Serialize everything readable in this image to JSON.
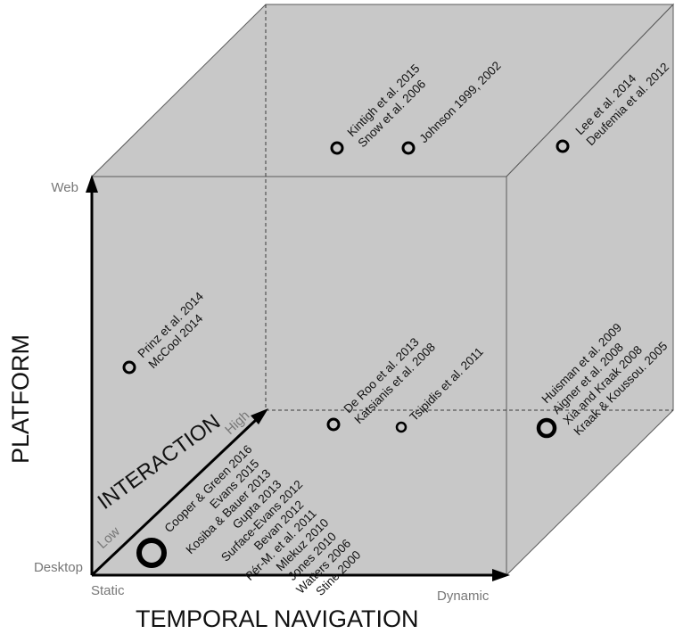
{
  "axes": {
    "platform": {
      "title": "PLATFORM",
      "low": "Desktop",
      "high": "Web"
    },
    "temporal": {
      "title": "TEMPORAL NAVIGATION",
      "low": "Static",
      "high": "Dynamic"
    },
    "interaction": {
      "title": "INTERACTION",
      "low": "Low",
      "high": "High"
    }
  },
  "groups": [
    {
      "id": "back-web-static",
      "refs": [
        "Kintigh et al. 2015",
        "Snow et al. 2006"
      ]
    },
    {
      "id": "back-web-mid",
      "refs": [
        "Johnson 1999, 2002"
      ]
    },
    {
      "id": "back-web-dynamic",
      "refs": [
        "Lee et al. 2014",
        "Deufemia et al. 2012"
      ]
    },
    {
      "id": "front-web-static",
      "refs": [
        "Prinz et al. 2014",
        "McCool 2014"
      ]
    },
    {
      "id": "back-desktop-static",
      "refs": [
        "De Roo et al. 2013",
        "Katsianis et al. 2008"
      ]
    },
    {
      "id": "back-desktop-mid",
      "refs": [
        "Tsipidis et al. 2011"
      ]
    },
    {
      "id": "front-desktop-dynamic",
      "refs": [
        "Huisman et al. 2009",
        "Aigner et al. 2008",
        "Xia and Kraak 2008",
        "Kraak & Koussou. 2005"
      ]
    },
    {
      "id": "front-desktop-static",
      "refs": [
        "Cooper & Green 2016",
        "Evans 2015",
        "Kosiba & Bauer 2013",
        "Gupta 2013",
        "Surface-Evans 2012",
        "Bevan 2012",
        "Pér-M. et al. 2011",
        "Mlekuz 2010",
        "Jones 2010",
        "Watters 2006",
        "Stine 2000"
      ]
    }
  ]
}
